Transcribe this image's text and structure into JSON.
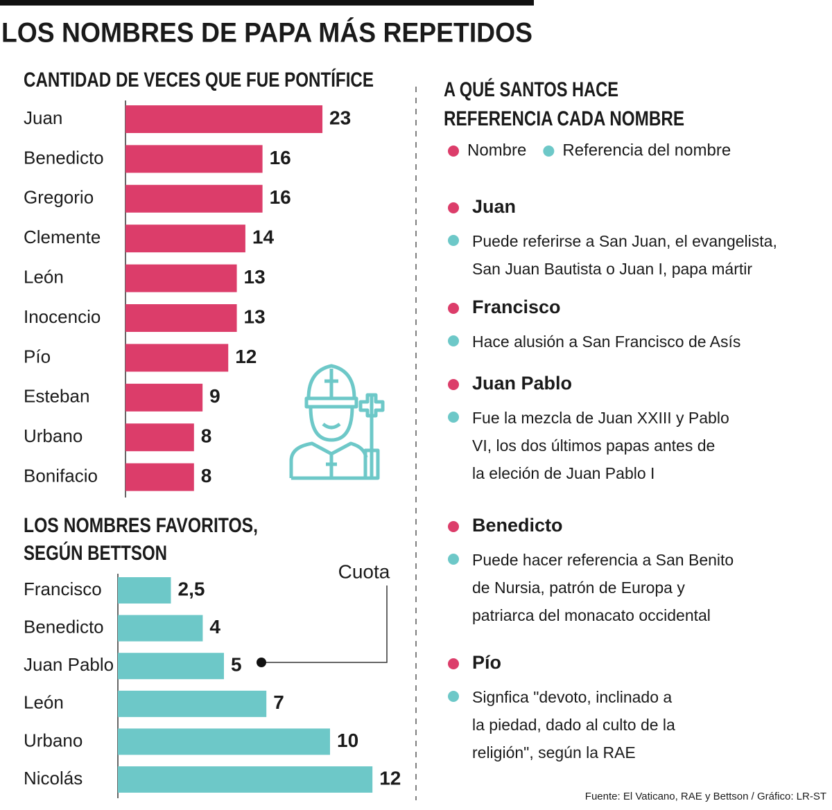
{
  "title": "LOS NOMBRES DE PAPA MÁS REPETIDOS",
  "chart_data": [
    {
      "type": "bar",
      "title": [
        "CANTIDAD DE VECES QUE FUE PONTÍFICE"
      ],
      "categories": [
        "Juan",
        "Benedicto",
        "Gregorio",
        "Clemente",
        "León",
        "Inocencio",
        "Pío",
        "Esteban",
        "Urbano",
        "Bonifacio"
      ],
      "values": [
        23,
        16,
        16,
        14,
        13,
        13,
        12,
        9,
        8,
        8
      ],
      "color": "#dc3d6a"
    },
    {
      "type": "bar",
      "title": [
        "LOS NOMBRES FAVORITOS,",
        "SEGÚN BETTSON"
      ],
      "annotation": "Cuota",
      "categories": [
        "Francisco",
        "Benedicto",
        "Juan Pablo",
        "León",
        "Urbano",
        "Nicolás"
      ],
      "values": [
        2.5,
        4,
        5,
        7,
        10,
        12
      ],
      "value_labels": [
        "2,5",
        "4",
        "5",
        "7",
        "10",
        "12"
      ],
      "color": "#6dc8c8"
    }
  ],
  "references": {
    "title": [
      "A QUÉ SANTOS HACE",
      "REFERENCIA CADA NOMBRE"
    ],
    "legend": [
      {
        "name": "Nombre",
        "color": "#dc3d6a"
      },
      {
        "name": "Referencia del nombre",
        "color": "#6dc8c8"
      }
    ],
    "items": [
      {
        "name": "Juan",
        "text": [
          "Puede referirse a San Juan, el evangelista,",
          "San Juan Bautista o Juan I, papa mártir"
        ]
      },
      {
        "name": "Francisco",
        "text": [
          "Hace alusión a San Francisco de Asís"
        ]
      },
      {
        "name": "Juan Pablo",
        "text": [
          "Fue la mezcla de Juan XXIII y Pablo",
          "VI, los dos últimos papas antes de",
          "la eleción de Juan Pablo I"
        ]
      },
      {
        "name": "Benedicto",
        "text": [
          "Puede hacer referencia a San Benito",
          "de Nursia, patrón de Europa y",
          "patriarca del monacato occidental"
        ]
      },
      {
        "name": "Pío",
        "text": [
          "Signfica \"devoto, inclinado a",
          "la piedad, dado al culto de la",
          "religión\", según la RAE"
        ]
      }
    ]
  },
  "source": "Fuente: El Vaticano, RAE y Bettson / Gráfico: LR-ST"
}
